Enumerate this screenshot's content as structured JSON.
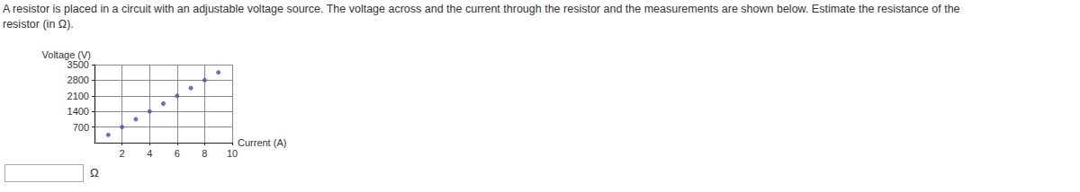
{
  "question": [
    "A resistor is placed in a circuit with an adjustable voltage source. The voltage across and the current through the resistor and the measurements are shown below. Estimate the resistance of the",
    "resistor (in Ω)."
  ],
  "chart_data": {
    "type": "scatter",
    "x_label": "Current (A)",
    "y_label": "Voltage (V)",
    "x": [
      1,
      2,
      3,
      4,
      5,
      6,
      7,
      8,
      9
    ],
    "values": [
      350,
      700,
      1050,
      1400,
      1750,
      2100,
      2450,
      2800,
      3150
    ],
    "color": "#3f4fb8",
    "marker": "circle",
    "xlim": [
      0,
      10
    ],
    "ylim": [
      0,
      3500
    ],
    "xticks": [
      2,
      4,
      6,
      8,
      10
    ],
    "yticks": [
      700,
      1400,
      2100,
      2800,
      3500
    ],
    "grid": true
  },
  "answer_unit": "Ω"
}
